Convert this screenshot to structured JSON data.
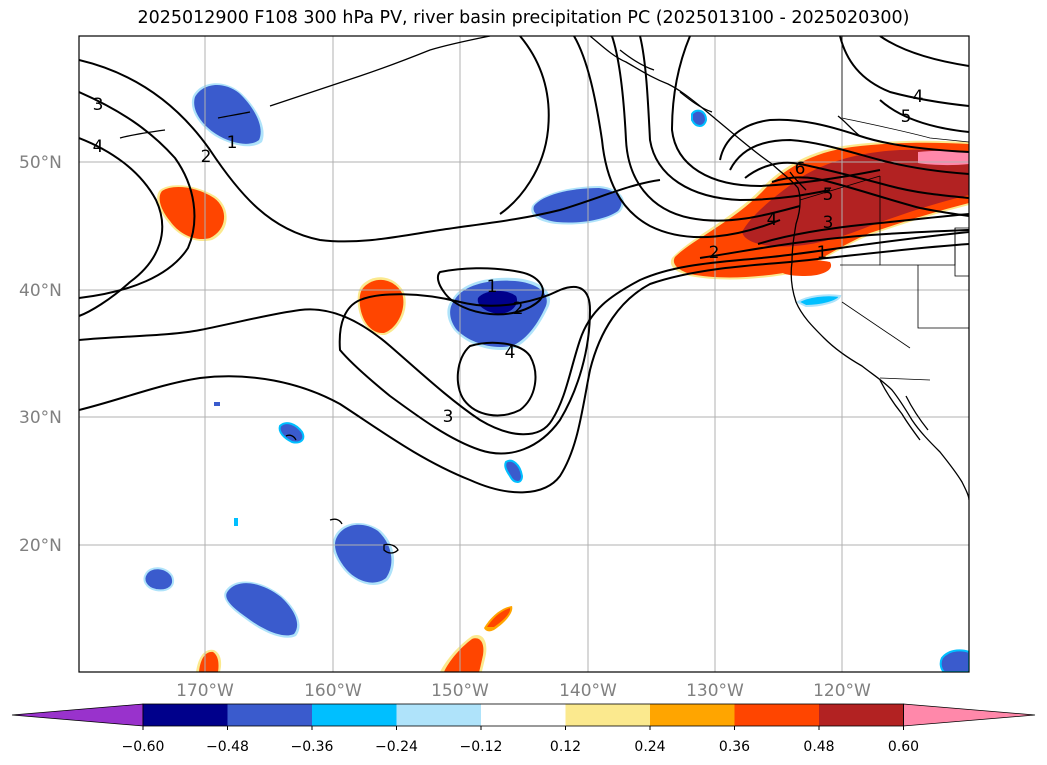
{
  "title": "2025012900 F108 300 hPa PV, river basin precipitation PC (2025013100 - 2025020300)",
  "map": {
    "lat_labels": [
      "50°N",
      "40°N",
      "30°N",
      "20°N"
    ],
    "lon_labels": [
      "170°W",
      "160°W",
      "150°W",
      "140°W",
      "130°W",
      "120°W"
    ],
    "contour_labels": [
      "3",
      "4",
      "2",
      "1",
      "1",
      "2",
      "4",
      "3",
      "2",
      "4",
      "3",
      "1",
      "5",
      "6",
      "4",
      "5"
    ],
    "colors": {
      "grid": "#b0b0b0",
      "contour": "#000000",
      "coast": "#000000"
    }
  },
  "colorbar": {
    "colors": [
      "#9932cc",
      "#00008b",
      "#3a5bcd",
      "#00bfff",
      "#afe3fa",
      "#ffffff",
      "#fbe98e",
      "#ffa500",
      "#ff4500",
      "#b22222",
      "#ff88aa"
    ],
    "tick_labels": [
      "−0.60",
      "−0.48",
      "−0.36",
      "−0.24",
      "−0.12",
      "0.12",
      "0.24",
      "0.36",
      "0.48",
      "0.60"
    ]
  }
}
